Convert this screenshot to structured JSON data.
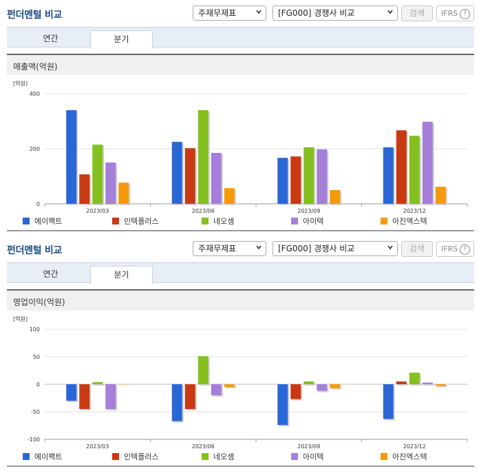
{
  "sections": [
    {
      "title": "펀더멘털 비교",
      "select1": "주재무제표",
      "select2": "[FG000] 경쟁사 비교",
      "search_label": "검색",
      "ifrs_label": "IFRS",
      "ifrs_help": "?",
      "tabs": [
        {
          "label": "연간",
          "active": false
        },
        {
          "label": "분기",
          "active": true
        }
      ],
      "panel_title": "매출액(억원)",
      "unit_label": "[억원]"
    },
    {
      "title": "펀더멘털 비교",
      "select1": "주재무제표",
      "select2": "[FG000] 경쟁사 비교",
      "search_label": "검색",
      "ifrs_label": "IFRS",
      "ifrs_help": "?",
      "tabs": [
        {
          "label": "연간",
          "active": false
        },
        {
          "label": "분기",
          "active": true
        }
      ],
      "panel_title": "영업이익(억원)",
      "unit_label": "[억원]"
    }
  ],
  "chart_data": [
    {
      "type": "bar",
      "title": "매출액(억원)",
      "ylabel": "[억원]",
      "categories": [
        "2023/03",
        "2023/06",
        "2023/09",
        "2023/12"
      ],
      "ylim": [
        0,
        400
      ],
      "yticks": [
        0,
        200,
        400
      ],
      "grid": true,
      "legend": "bottom",
      "series": [
        {
          "name": "에이팩트",
          "color": "#2a67d6",
          "values": [
            340,
            225,
            167,
            205
          ]
        },
        {
          "name": "인텍플러스",
          "color": "#c93a12",
          "values": [
            107,
            202,
            172,
            267
          ]
        },
        {
          "name": "네오셈",
          "color": "#84c01f",
          "values": [
            215,
            340,
            205,
            247
          ]
        },
        {
          "name": "아이텍",
          "color": "#a57fd9",
          "values": [
            150,
            185,
            198,
            298
          ]
        },
        {
          "name": "아진엑스텍",
          "color": "#f59a0b",
          "values": [
            77,
            57,
            50,
            62
          ]
        }
      ]
    },
    {
      "type": "bar",
      "title": "영업이익(억원)",
      "ylabel": "[억원]",
      "categories": [
        "2023/03",
        "2023/06",
        "2023/09",
        "2023/12"
      ],
      "ylim": [
        -100,
        100
      ],
      "yticks": [
        -100,
        -50,
        0,
        50,
        100
      ],
      "grid": true,
      "legend": "bottom",
      "series": [
        {
          "name": "에이팩트",
          "color": "#2a67d6",
          "values": [
            -30,
            -67,
            -74,
            -63
          ]
        },
        {
          "name": "인텍플러스",
          "color": "#c93a12",
          "values": [
            -45,
            -45,
            -27,
            5
          ]
        },
        {
          "name": "네오셈",
          "color": "#84c01f",
          "values": [
            4,
            51,
            5,
            21
          ]
        },
        {
          "name": "아이텍",
          "color": "#a57fd9",
          "values": [
            -45,
            -20,
            -12,
            3
          ]
        },
        {
          "name": "아진엑스텍",
          "color": "#f59a0b",
          "values": [
            0,
            -5,
            -7,
            -3
          ]
        }
      ]
    }
  ]
}
